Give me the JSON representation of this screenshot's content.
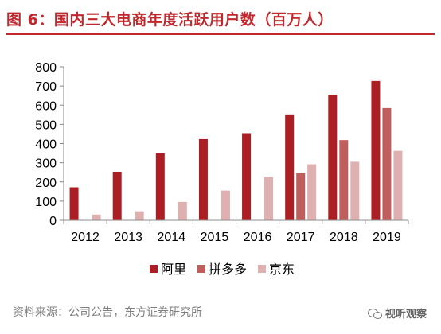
{
  "figure": {
    "title": "图 6：国内三大电商年度活跃用户数（百万人）",
    "source": "资料来源：公司公告，东方证券研究所",
    "watermark": "视听观察",
    "watermark_icon": "wechat-icon"
  },
  "chart_data": {
    "type": "bar",
    "title": "",
    "xlabel": "",
    "ylabel": "",
    "categories": [
      "2012",
      "2013",
      "2014",
      "2015",
      "2016",
      "2017",
      "2018",
      "2019"
    ],
    "ylim": [
      0,
      800
    ],
    "yticks": [
      0,
      100,
      200,
      300,
      400,
      500,
      600,
      700,
      800
    ],
    "grid": false,
    "legend_position": "bottom",
    "series": [
      {
        "name": "阿里",
        "color": "#ab1f24",
        "values": [
          172,
          253,
          350,
          423,
          454,
          552,
          654,
          726
        ]
      },
      {
        "name": "拼多多",
        "color": "#bf5f5d",
        "values": [
          null,
          null,
          null,
          null,
          null,
          245,
          418,
          585
        ]
      },
      {
        "name": "京东",
        "color": "#dfb0b0",
        "values": [
          30,
          47,
          96,
          155,
          227,
          292,
          305,
          362
        ]
      }
    ]
  }
}
